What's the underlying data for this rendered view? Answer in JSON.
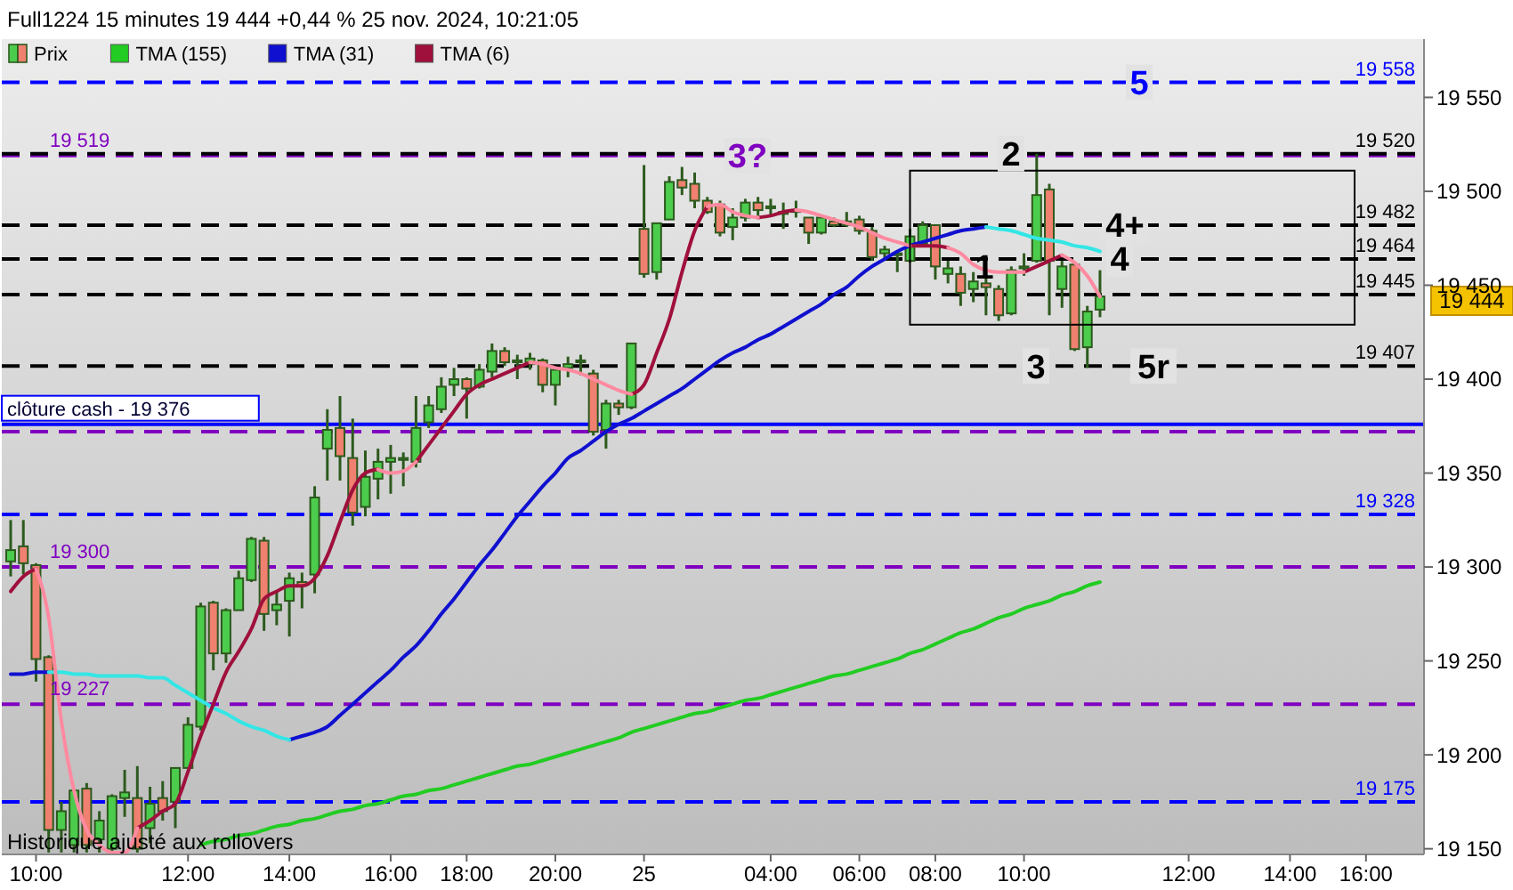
{
  "chart_data": {
    "type": "candlestick",
    "title": "Full1224 15 minutes 19 444 +0,44 % 25 nov. 2024, 10:21:05",
    "categories": [
      null,
      null,
      "10:00",
      null,
      null,
      null,
      null,
      null,
      null,
      null,
      null,
      null,
      null,
      null,
      "12:00",
      null,
      null,
      null,
      null,
      null,
      null,
      null,
      "14:00",
      null,
      null,
      null,
      null,
      null,
      null,
      null,
      "16:00",
      null,
      null,
      null,
      null,
      null,
      "18:00",
      null,
      null,
      null,
      null,
      null,
      null,
      "20:00",
      null,
      null,
      null,
      null,
      null,
      null,
      "25",
      null,
      null,
      null,
      null,
      null,
      null,
      null,
      null,
      null,
      "04:00",
      null,
      null,
      null,
      null,
      null,
      null,
      "06:00",
      null,
      null,
      null,
      null,
      null,
      "08:00",
      null,
      null,
      null,
      null,
      null,
      null,
      "10:00",
      null,
      null,
      null,
      null,
      null,
      null,
      null,
      null,
      null,
      null,
      null,
      null,
      "12:00",
      null,
      null,
      null,
      null,
      null,
      null,
      null,
      "14:00",
      null,
      null,
      null,
      null,
      null,
      "16:00",
      null,
      null,
      null,
      null
    ],
    "ylim": [
      19147,
      19581
    ],
    "yticks": [
      {
        "value": 19150,
        "label": "19 150"
      },
      {
        "value": 19200,
        "label": "19 200"
      },
      {
        "value": 19250,
        "label": "19 250"
      },
      {
        "value": 19300,
        "label": "19 300"
      },
      {
        "value": 19350,
        "label": "19 350"
      },
      {
        "value": 19400,
        "label": "19 400"
      },
      {
        "value": 19450,
        "label": "19 450"
      },
      {
        "value": 19500,
        "label": "19 500"
      },
      {
        "value": 19550,
        "label": "19 550"
      }
    ],
    "legend": "top left",
    "series": [
      {
        "name": "Prix",
        "color": "#2d5a1e",
        "ohlc": [
          [
            19303,
            19325,
            19295,
            19309
          ],
          [
            19311,
            19325,
            19296,
            19302
          ],
          [
            19301,
            19302,
            19239,
            19251
          ],
          [
            19252,
            19253,
            19148,
            19160
          ],
          [
            19160,
            19175,
            19148,
            19170
          ],
          [
            19152,
            19182,
            19148,
            19181
          ],
          [
            19182,
            19185,
            19148,
            19152
          ],
          [
            19155,
            19170,
            19148,
            19165
          ],
          [
            19150,
            19179,
            19148,
            19178
          ],
          [
            19177,
            19192,
            19167,
            19180
          ],
          [
            19177,
            19194,
            19148,
            19150
          ],
          [
            19161,
            19183,
            19153,
            19174
          ],
          [
            19177,
            19186,
            19165,
            19170
          ],
          [
            19175,
            19193,
            19161,
            19193
          ],
          [
            19193,
            19220,
            19193,
            19216
          ],
          [
            19215,
            19281,
            19213,
            19279
          ],
          [
            19281,
            19282,
            19245,
            19254
          ],
          [
            19254,
            19278,
            19249,
            19277
          ],
          [
            19277,
            19298,
            19277,
            19294
          ],
          [
            19293,
            19316,
            19292,
            19315
          ],
          [
            19314,
            19316,
            19266,
            19275
          ],
          [
            19277,
            19287,
            19269,
            19280
          ],
          [
            19282,
            19297,
            19263,
            19294
          ],
          [
            19292,
            19297,
            19278,
            19290
          ],
          [
            19296,
            19343,
            19286,
            19337
          ],
          [
            19363,
            19384,
            19346,
            19373
          ],
          [
            19374,
            19391,
            19346,
            19359
          ],
          [
            19358,
            19379,
            19322,
            19329
          ],
          [
            19332,
            19362,
            19327,
            19348
          ],
          [
            19347,
            19363,
            19336,
            19356
          ],
          [
            19356,
            19365,
            19339,
            19358
          ],
          [
            19357,
            19361,
            19343,
            19358
          ],
          [
            19356,
            19391,
            19353,
            19374
          ],
          [
            19377,
            19391,
            19374,
            19386
          ],
          [
            19384,
            19401,
            19382,
            19396
          ],
          [
            19397,
            19406,
            19391,
            19400
          ],
          [
            19400,
            19401,
            19379,
            19395
          ],
          [
            19396,
            19408,
            19395,
            19405
          ],
          [
            19404,
            19419,
            19401,
            19415
          ],
          [
            19415,
            19417,
            19407,
            19409
          ],
          [
            19409,
            19413,
            19400,
            19410
          ],
          [
            19408,
            19414,
            19405,
            19411
          ],
          [
            19410,
            19411,
            19393,
            19397
          ],
          [
            19397,
            19406,
            19386,
            19405
          ],
          [
            19406,
            19412,
            19401,
            19408
          ],
          [
            19409,
            19413,
            19402,
            19410
          ],
          [
            19403,
            19405,
            19370,
            19372
          ],
          [
            19373,
            19389,
            19363,
            19387
          ],
          [
            19387,
            19389,
            19381,
            19385
          ],
          [
            19385,
            19419,
            19384,
            19419
          ],
          [
            19480,
            19514,
            19454,
            19456
          ],
          [
            19457,
            19483,
            19453,
            19483
          ],
          [
            19485,
            19508,
            19485,
            19505
          ],
          [
            19506,
            19513,
            19498,
            19502
          ],
          [
            19504,
            19510,
            19491,
            19495
          ],
          [
            19495,
            19497,
            19488,
            19489
          ],
          [
            19493,
            19495,
            19476,
            19478
          ],
          [
            19481,
            19491,
            19474,
            19486
          ],
          [
            19486,
            19496,
            19484,
            19494
          ],
          [
            19494,
            19497,
            19487,
            19490
          ],
          [
            19491,
            19496,
            19487,
            19492
          ],
          [
            19488,
            19494,
            19480,
            19489
          ],
          [
            19489,
            19495,
            19486,
            19490
          ],
          [
            19486,
            19486,
            19472,
            19478
          ],
          [
            19478,
            19486,
            19477,
            19486
          ],
          [
            19484,
            19486,
            19481,
            19482
          ],
          [
            19482,
            19489,
            19481,
            19484
          ],
          [
            19485,
            19487,
            19477,
            19479
          ],
          [
            19479,
            19481,
            19463,
            19465
          ],
          [
            19467,
            19471,
            19463,
            19469
          ],
          [
            19466,
            19467,
            19457,
            19467
          ],
          [
            19463,
            19480,
            19462,
            19476
          ],
          [
            19472,
            19484,
            19471,
            19482
          ],
          [
            19482,
            19482,
            19453,
            19460
          ],
          [
            19456,
            19463,
            19451,
            19459
          ],
          [
            19456,
            19460,
            19439,
            19446
          ],
          [
            19448,
            19457,
            19441,
            19452
          ],
          [
            19451,
            19458,
            19434,
            19449
          ],
          [
            19448,
            19450,
            19431,
            19434
          ],
          [
            19435,
            19460,
            19434,
            19458
          ],
          [
            19459,
            19467,
            19455,
            19460
          ],
          [
            19463,
            19520,
            19462,
            19498
          ],
          [
            19501,
            19504,
            19434,
            19463
          ],
          [
            19448,
            19463,
            19438,
            19460
          ],
          [
            19461,
            19462,
            19415,
            19416
          ],
          [
            19417,
            19439,
            19406,
            19436
          ],
          [
            19437,
            19458,
            19433,
            19444
          ],
          null,
          null,
          null,
          null,
          null,
          null,
          null,
          null,
          null,
          null,
          null,
          null,
          null,
          null,
          null,
          null,
          null,
          null,
          null,
          null,
          null,
          null,
          null,
          null,
          null
        ],
        "colors": [
          "#4ccc4c",
          "#f08070",
          "#f08070",
          "#f08070",
          "#4ccc4c",
          "#4ccc4c",
          "#f08070",
          "#4ccc4c",
          "#4ccc4c",
          "#4ccc4c",
          "#f08070",
          "#4ccc4c",
          "#f08070",
          "#4ccc4c",
          "#4ccc4c",
          "#4ccc4c",
          "#f08070",
          "#4ccc4c",
          "#4ccc4c",
          "#4ccc4c",
          "#f08070",
          "#4ccc4c",
          "#4ccc4c",
          "#f08070",
          "#4ccc4c",
          "#4ccc4c",
          "#f08070",
          "#f08070",
          "#4ccc4c",
          "#4ccc4c",
          "#4ccc4c",
          "#4ccc4c",
          "#4ccc4c",
          "#4ccc4c",
          "#4ccc4c",
          "#4ccc4c",
          "#f08070",
          "#4ccc4c",
          "#4ccc4c",
          "#f08070",
          "#4ccc4c",
          "#4ccc4c",
          "#f08070",
          "#4ccc4c",
          "#4ccc4c",
          "#4ccc4c",
          "#f08070",
          "#4ccc4c",
          "#f08070",
          "#4ccc4c",
          "#f08070",
          "#4ccc4c",
          "#4ccc4c",
          "#f08070",
          "#f08070",
          "#f08070",
          "#f08070",
          "#4ccc4c",
          "#4ccc4c",
          "#f08070",
          "#4ccc4c",
          "#4ccc4c",
          "#4ccc4c",
          "#f08070",
          "#4ccc4c",
          "#f08070",
          "#4ccc4c",
          "#f08070",
          "#f08070",
          "#4ccc4c",
          "#4ccc4c",
          "#4ccc4c",
          "#4ccc4c",
          "#f08070",
          "#4ccc4c",
          "#f08070",
          "#4ccc4c",
          "#f08070",
          "#f08070",
          "#4ccc4c",
          "#4ccc4c",
          "#4ccc4c",
          "#f08070",
          "#4ccc4c",
          "#f08070",
          "#4ccc4c",
          "#4ccc4c",
          null,
          null,
          null,
          null,
          null,
          null,
          null,
          null,
          null,
          null,
          null,
          null,
          null,
          null,
          null,
          null,
          null,
          null,
          null,
          null,
          null,
          null,
          null,
          null,
          null
        ]
      },
      {
        "name": "TMA (155)",
        "type": "line",
        "color": "#22cc22",
        "values": [
          null,
          null,
          null,
          null,
          null,
          null,
          null,
          null,
          null,
          null,
          null,
          null,
          null,
          null,
          null,
          19152,
          19154,
          19155,
          19157,
          19158,
          19160,
          19162,
          19163,
          19165,
          19166,
          19168,
          19170,
          19171,
          19173,
          19174,
          19176,
          19178,
          19179,
          19181,
          19182,
          19184,
          19186,
          19188,
          19190,
          19192,
          19194,
          19195,
          19197,
          19199,
          19201,
          19203,
          19205,
          19207,
          19209,
          19212,
          19214,
          19216,
          19218,
          19220,
          19222,
          19223,
          19225,
          19227,
          19229,
          19230,
          19232,
          19234,
          19236,
          19238,
          19240,
          19242,
          19243,
          19245,
          19247,
          19249,
          19251,
          19254,
          19256,
          19259,
          19262,
          19265,
          19267,
          19270,
          19273,
          19275,
          19278,
          19280,
          19282,
          19285,
          19287,
          19290,
          19292,
          null,
          null,
          null,
          null,
          null,
          null,
          null,
          null,
          null,
          null,
          null,
          null,
          null,
          null,
          null,
          null,
          null,
          null,
          null,
          null,
          null,
          null,
          null,
          null,
          null
        ]
      },
      {
        "name": "TMA (31)",
        "type": "line",
        "color": "#1010d0",
        "values": [
          19243,
          19243,
          19244,
          19244,
          null,
          null,
          null,
          null,
          null,
          null,
          null,
          null,
          null,
          null,
          null,
          null,
          null,
          null,
          null,
          null,
          null,
          null,
          19208,
          19210,
          19212,
          19215,
          19221,
          19227,
          19233,
          19239,
          19245,
          19252,
          19258,
          19266,
          19275,
          19283,
          19292,
          19301,
          19309,
          19318,
          19327,
          19335,
          19343,
          19350,
          19358,
          19362,
          19367,
          19372,
          19376,
          19379,
          19383,
          19387,
          19391,
          19395,
          19400,
          19405,
          19410,
          19414,
          19417,
          19421,
          19424,
          19428,
          19432,
          19436,
          19440,
          19445,
          19449,
          19455,
          19460,
          19464,
          19468,
          19471,
          19473,
          19475,
          19477,
          19479,
          19480,
          19481,
          null,
          null,
          null,
          null,
          null,
          null,
          null,
          null,
          null,
          null,
          null,
          null,
          null,
          null,
          null,
          null,
          null,
          null,
          null,
          null,
          null,
          null,
          null,
          null,
          null,
          null,
          null,
          null,
          null,
          null,
          null,
          null,
          null,
          null
        ]
      },
      {
        "type": "line",
        "color": "#33e6e6",
        "values": [
          null,
          null,
          null,
          19244,
          19244,
          19243,
          19243,
          19242,
          19242,
          19242,
          19242,
          19241,
          19241,
          19237,
          19233,
          19229,
          19225,
          19222,
          19218,
          19215,
          19213,
          19210,
          19208,
          null,
          null,
          null,
          null,
          null,
          null,
          null,
          null,
          null,
          null,
          null,
          null,
          null,
          null,
          null,
          null,
          null,
          null,
          null,
          null,
          null,
          null,
          null,
          null,
          null,
          null,
          null,
          null,
          null,
          null,
          null,
          null,
          null,
          null,
          null,
          null,
          null,
          null,
          null,
          null,
          null,
          null,
          null,
          null,
          null,
          null,
          null,
          null,
          null,
          null,
          null,
          null,
          null,
          null,
          19481,
          19480,
          19479,
          19477,
          19475,
          19474,
          19473,
          19471,
          19470,
          19468,
          null,
          null,
          null,
          null,
          null,
          null,
          null,
          null,
          null,
          null,
          null,
          null,
          null,
          null,
          null,
          null,
          null,
          null,
          null,
          null,
          null,
          null,
          null,
          null,
          null
        ]
      },
      {
        "name": "TMA (6)",
        "type": "line",
        "color": "#a0103c",
        "values": [
          19287,
          19295,
          19299,
          null,
          null,
          null,
          null,
          null,
          null,
          null,
          19161,
          19165,
          19170,
          19174,
          19191,
          19210,
          19227,
          19244,
          19255,
          19267,
          19283,
          19287,
          19290,
          19290,
          19294,
          19306,
          19324,
          19341,
          19350,
          19352,
          null,
          null,
          19356,
          19365,
          19374,
          19383,
          19392,
          19397,
          19400,
          19403,
          19406,
          19409,
          null,
          null,
          null,
          null,
          null,
          null,
          null,
          19392,
          19397,
          19414,
          19432,
          19457,
          19479,
          19492,
          null,
          null,
          null,
          19486,
          19487,
          19489,
          19490,
          null,
          null,
          null,
          null,
          null,
          null,
          null,
          null,
          19471,
          19471,
          19471,
          19470,
          null,
          null,
          null,
          null,
          null,
          19457,
          19460,
          19463,
          19466,
          null,
          null,
          null,
          null,
          null,
          null,
          null,
          null,
          null,
          null,
          null,
          null,
          null,
          null,
          null,
          null,
          null,
          null,
          null,
          null,
          null,
          null,
          null,
          null,
          null,
          null,
          null,
          null
        ]
      },
      {
        "type": "line",
        "color": "#ff8aa0",
        "values": [
          null,
          null,
          19299,
          19273,
          19218,
          19181,
          19160,
          19152,
          19148,
          19148,
          19161,
          null,
          null,
          null,
          null,
          null,
          null,
          null,
          null,
          null,
          null,
          null,
          null,
          null,
          null,
          null,
          null,
          null,
          null,
          19352,
          19350,
          19351,
          19356,
          null,
          null,
          null,
          null,
          null,
          null,
          null,
          null,
          19409,
          19408,
          19406,
          19405,
          19403,
          19400,
          19397,
          19394,
          19392,
          null,
          null,
          null,
          null,
          null,
          19492,
          19493,
          19489,
          19487,
          19486,
          null,
          null,
          19490,
          19489,
          19487,
          19485,
          19483,
          19481,
          19478,
          19475,
          19473,
          19471,
          null,
          null,
          19470,
          19467,
          19461,
          19458,
          19457,
          19457,
          19457,
          null,
          null,
          19466,
          19462,
          19455,
          19444,
          null,
          null,
          null,
          null,
          null,
          null,
          null,
          null,
          null,
          null,
          null,
          null,
          null,
          null,
          null,
          null,
          null,
          null,
          null,
          null,
          null,
          null,
          null,
          null,
          null
        ]
      }
    ],
    "ref_lines": [
      {
        "axis": "y",
        "value": 19558,
        "label": "19 558",
        "color": "#0000ff",
        "line_style": "dashed"
      },
      {
        "axis": "y",
        "value": 19519,
        "label": "19 519",
        "color": "#8000c0",
        "line_style": "dashed"
      },
      {
        "axis": "y",
        "value": 19520,
        "label": "19 520",
        "color": "#000000",
        "line_style": "dashed"
      },
      {
        "axis": "y",
        "value": 19482,
        "label": "19 482",
        "color": "#000000",
        "line_style": "dashed"
      },
      {
        "axis": "y",
        "value": 19464,
        "label": "19 464",
        "color": "#000000",
        "line_style": "dashed"
      },
      {
        "axis": "y",
        "value": 19445,
        "label": "19 445",
        "color": "#000000",
        "line_style": "dashed"
      },
      {
        "axis": "y",
        "value": 19407,
        "label": "19 407",
        "color": "#000000",
        "line_style": "dashed"
      },
      {
        "axis": "y",
        "value": 19376,
        "label": "clôture cash -  19 376",
        "color": "#0000ff",
        "line_style": "solid"
      },
      {
        "axis": "y",
        "value": 19372,
        "color": "#8000c0",
        "line_style": "dashed"
      },
      {
        "axis": "y",
        "value": 19328,
        "label": "19 328",
        "color": "#0000ff",
        "line_style": "dashed"
      },
      {
        "axis": "y",
        "value": 19300,
        "label": "19 300",
        "color": "#8000c0",
        "line_style": "dashed"
      },
      {
        "axis": "y",
        "value": 19227,
        "label": "19 227",
        "color": "#8000c0",
        "line_style": "dashed"
      },
      {
        "axis": "y",
        "value": 19175,
        "label": "19 175",
        "color": "#0000ff",
        "line_style": "dashed"
      }
    ],
    "annotations": [
      {
        "text": "5",
        "y": 19558
      },
      {
        "text": "3?",
        "y": 19519
      },
      {
        "text": "2",
        "y": 19520
      },
      {
        "text": "4+",
        "y": 19482
      },
      {
        "text": "4",
        "y": 19464
      },
      "1",
      {
        "text": "3",
        "y": 19407
      },
      {
        "text": "5r",
        "y": 19407
      },
      "19 444",
      "Historique ajusté aux rollovers"
    ]
  }
}
